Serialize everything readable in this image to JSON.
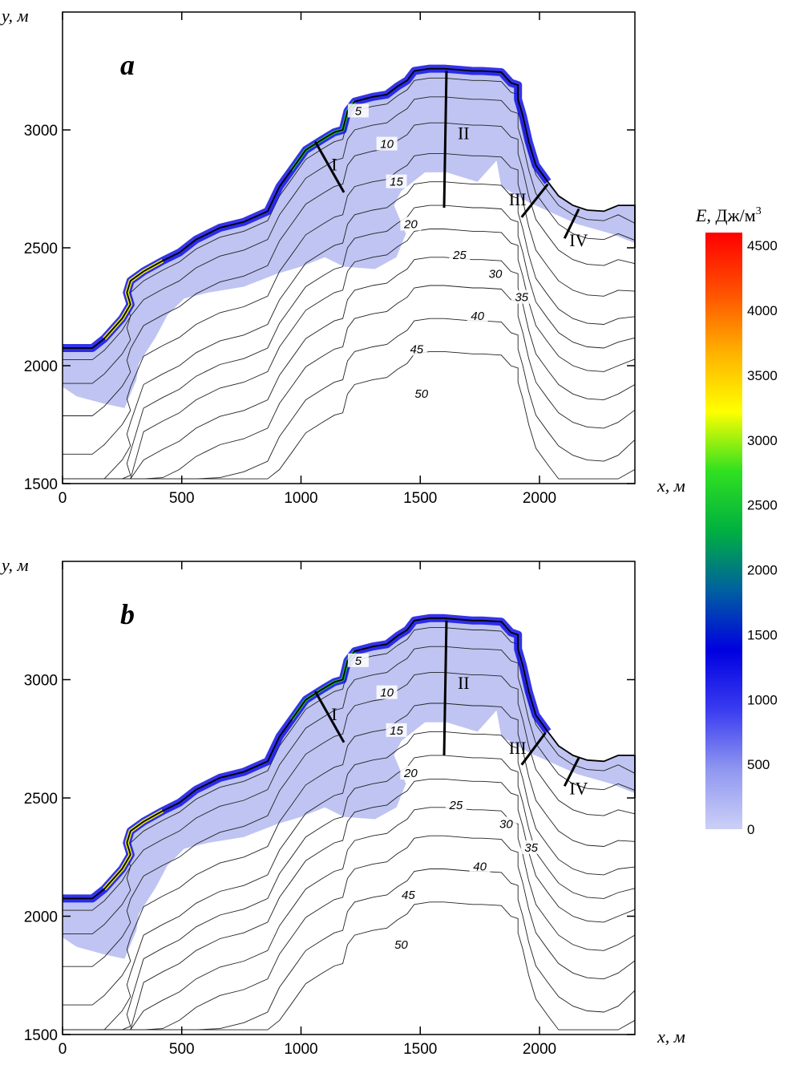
{
  "chart_data": [
    {
      "type": "contour",
      "panel": "a",
      "xlabel": "x, м",
      "ylabel": "y, м",
      "xlim": [
        0,
        2400
      ],
      "ylim": [
        1500,
        3500
      ],
      "xticks": [
        0,
        500,
        1000,
        1500,
        2000
      ],
      "yticks": [
        1500,
        2000,
        2500,
        3000
      ],
      "contour_labels": [
        {
          "text": "5",
          "x": 1240,
          "y": 3070
        },
        {
          "text": "10",
          "x": 1360,
          "y": 2930
        },
        {
          "text": "15",
          "x": 1400,
          "y": 2770
        },
        {
          "text": "20",
          "x": 1460,
          "y": 2590
        },
        {
          "text": "25",
          "x": 1665,
          "y": 2460
        },
        {
          "text": "30",
          "x": 1815,
          "y": 2380
        },
        {
          "text": "35",
          "x": 1925,
          "y": 2280
        },
        {
          "text": "40",
          "x": 1740,
          "y": 2200
        },
        {
          "text": "45",
          "x": 1485,
          "y": 2060
        },
        {
          "text": "50",
          "x": 1505,
          "y": 1870
        }
      ],
      "sections": [
        {
          "label": "I",
          "from": [
            1060,
            2950
          ],
          "to": [
            1180,
            2735
          ]
        },
        {
          "label": "II",
          "from": [
            1610,
            3250
          ],
          "to": [
            1600,
            2670
          ]
        },
        {
          "label": "III",
          "from": [
            2035,
            2770
          ],
          "to": [
            1925,
            2630
          ]
        },
        {
          "label": "IV",
          "from": [
            2165,
            2665
          ],
          "to": [
            2105,
            2540
          ]
        }
      ]
    },
    {
      "type": "contour",
      "panel": "b",
      "xlabel": "x, м",
      "ylabel": "y, м",
      "xlim": [
        0,
        2400
      ],
      "ylim": [
        1500,
        3500
      ],
      "xticks": [
        0,
        500,
        1000,
        1500,
        2000
      ],
      "yticks": [
        1500,
        2000,
        2500,
        3000
      ],
      "contour_labels": [
        {
          "text": "5",
          "x": 1240,
          "y": 3070
        },
        {
          "text": "10",
          "x": 1360,
          "y": 2935
        },
        {
          "text": "15",
          "x": 1400,
          "y": 2775
        },
        {
          "text": "20",
          "x": 1460,
          "y": 2595
        },
        {
          "text": "25",
          "x": 1650,
          "y": 2460
        },
        {
          "text": "30",
          "x": 1860,
          "y": 2380
        },
        {
          "text": "35",
          "x": 1965,
          "y": 2280
        },
        {
          "text": "40",
          "x": 1750,
          "y": 2200
        },
        {
          "text": "45",
          "x": 1450,
          "y": 2080
        },
        {
          "text": "50",
          "x": 1420,
          "y": 1870
        }
      ],
      "sections": [
        {
          "label": "I",
          "from": [
            1060,
            2950
          ],
          "to": [
            1180,
            2735
          ]
        },
        {
          "label": "II",
          "from": [
            1610,
            3250
          ],
          "to": [
            1600,
            2680
          ]
        },
        {
          "label": "III",
          "from": [
            2025,
            2775
          ],
          "to": [
            1925,
            2640
          ]
        },
        {
          "label": "IV",
          "from": [
            2165,
            2670
          ],
          "to": [
            2105,
            2550
          ]
        }
      ]
    }
  ],
  "colorbar": {
    "title_var": "E",
    "title_unit": ", Дж/м",
    "title_exp": "3",
    "min": 0,
    "max": 4600,
    "ticks": [
      0,
      500,
      1000,
      1500,
      2000,
      2500,
      3000,
      3500,
      4000,
      4500
    ],
    "colors": [
      "#ccd0f7",
      "#9097f0",
      "#3a3cf0",
      "#0000e0",
      "#0060a0",
      "#00b040",
      "#30e020",
      "#ffff00",
      "#ffb000",
      "#ff5000",
      "#ff0000"
    ]
  }
}
